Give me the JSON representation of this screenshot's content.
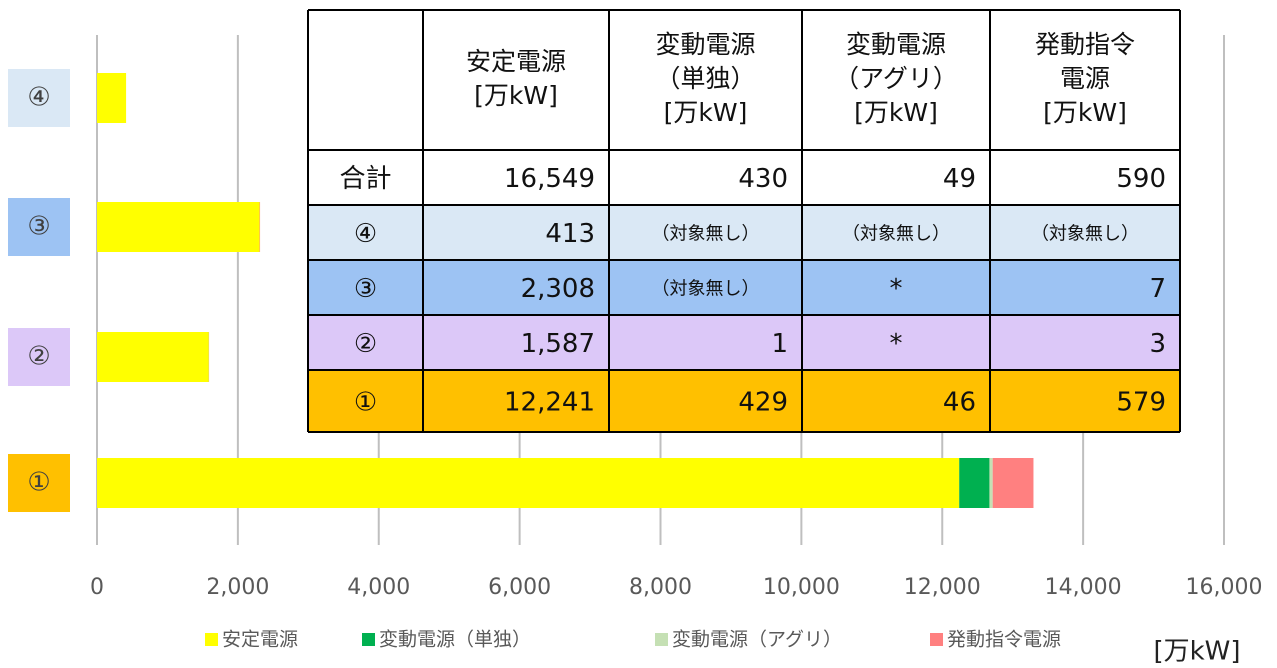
{
  "chart_data": {
    "type": "stacked_barh",
    "categories": [
      "①",
      "②",
      "③",
      "④"
    ],
    "category_colors": [
      "#ffc000",
      "#dcc8f8",
      "#9dc3f3",
      "#dae8f5"
    ],
    "series": [
      {
        "name": "安定電源",
        "color": "#ffff00",
        "values": [
          12241,
          1587,
          2308,
          413
        ]
      },
      {
        "name": "変動電源（単独）",
        "color": "#00b050",
        "values": [
          429,
          1,
          null,
          null
        ]
      },
      {
        "name": "変動電源（アグリ）",
        "color": "#c5e0b4",
        "values": [
          46,
          null,
          null,
          null
        ]
      },
      {
        "name": "発動指令電源",
        "color": "#ff8080",
        "values": [
          579,
          3,
          7,
          null
        ]
      }
    ],
    "xlim": [
      0,
      16000
    ],
    "xticks": [
      0,
      {
        "value": 2000,
        "label": "2,000"
      },
      {
        "value": 4000,
        "label": "4,000"
      },
      {
        "value": 6000,
        "label": "6,000"
      },
      {
        "value": 8000,
        "label": "8,000"
      },
      {
        "value": 10000,
        "label": "10,000"
      },
      {
        "value": 12000,
        "label": "12,000"
      },
      {
        "value": 14000,
        "label": "14,000"
      },
      {
        "value": 16000,
        "label": "16,000"
      }
    ],
    "xlabel": "[万kW]",
    "grid": true,
    "legend": "bottom"
  },
  "table": {
    "header": [
      [
        "安定電源",
        "[万kW]"
      ],
      [
        "変動電源",
        "（単独）",
        "[万kW]"
      ],
      [
        "変動電源",
        "（アグリ）",
        "[万kW]"
      ],
      [
        "発動指令",
        "電源",
        "[万kW]"
      ]
    ],
    "rows": [
      [
        "合計",
        "16,549",
        "430",
        "49",
        "590"
      ],
      [
        "④",
        "413",
        "（対象無し）",
        "（対象無し）",
        "（対象無し）"
      ],
      [
        "③",
        "2,308",
        "（対象無し）",
        "*",
        "7"
      ],
      [
        "②",
        "1,587",
        "1",
        "*",
        "3"
      ],
      [
        "①",
        "12,241",
        "429",
        "46",
        "579"
      ]
    ],
    "row_colors": [
      "#ffffff",
      "#dae8f5",
      "#9dc3f3",
      "#dcc8f8",
      "#ffc000"
    ]
  }
}
